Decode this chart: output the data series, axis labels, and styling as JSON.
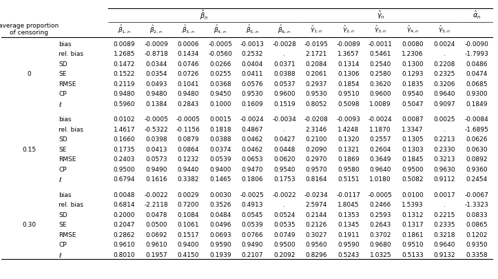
{
  "left_header1": "average proportion",
  "left_header2": "of censoring",
  "col_header_labels": [
    "$\\hat{\\beta}_{1,n}$",
    "$\\hat{\\beta}_{2,n}$",
    "$\\hat{\\beta}_{3,n}$",
    "$\\hat{\\beta}_{4,n}$",
    "$\\hat{\\beta}_{5,n}$",
    "$\\hat{\\beta}_{6,n}$",
    "$\\hat{\\gamma}_{1,n}$",
    "$\\hat{\\gamma}_{2,n}$",
    "$\\hat{\\gamma}_{3,n}$",
    "$\\hat{\\gamma}_{4,n}$",
    "$\\hat{\\gamma}_{5,n}$",
    ""
  ],
  "group_labels": [
    "$\\hat{\\beta}_n$",
    "$\\hat{\\gamma}_n$",
    "$\\hat{\\alpha}_n$"
  ],
  "row_labels_col1": [
    "0",
    "",
    "",
    "",
    "",
    "",
    "",
    "0.15",
    "",
    "",
    "",
    "",
    "",
    "",
    "0.30",
    "",
    "",
    "",
    "",
    "",
    ""
  ],
  "row_labels_col2": [
    "bias",
    "rel. bias",
    "SD",
    "SE",
    "RMSE",
    "CP",
    "$\\ell$",
    "bias",
    "rel. bias",
    "SD",
    "SE",
    "RMSE",
    "CP",
    "$\\ell$",
    "bias",
    "rel. bias",
    "SD",
    "SE",
    "RMSE",
    "CP",
    "$\\ell$"
  ],
  "data": [
    [
      "-0.0195",
      "-0.0089",
      "-0.0011",
      "0.0080",
      "0.0024",
      "-0.0090"
    ],
    [
      "2.1721",
      "1.3657",
      "0.5461",
      "1.2306",
      ".",
      "-1.7993"
    ],
    [
      "0.2084",
      "0.1314",
      "0.2540",
      "0.1300",
      "0.2208",
      "0.0486"
    ],
    [
      "0.2061",
      "0.1306",
      "0.2580",
      "0.1293",
      "0.2325",
      "0.0474"
    ],
    [
      "0.2937",
      "0.1854",
      "0.3620",
      "0.1835",
      "0.3206",
      "0.0685"
    ],
    [
      "0.9530",
      "0.9510",
      "0.9600",
      "0.9540",
      "0.9640",
      "0.9300"
    ],
    [
      "0.8052",
      "0.5098",
      "1.0089",
      "0.5047",
      "0.9097",
      "0.1849"
    ],
    [
      "-0.0208",
      "-0.0093",
      "-0.0024",
      "0.0087",
      "0.0025",
      "-0.0084"
    ],
    [
      "2.3146",
      "1.4248",
      "1.1870",
      "1.3347",
      ".",
      "-1.6895"
    ],
    [
      "0.2100",
      "0.1320",
      "0.2557",
      "0.1305",
      "0.2213",
      "0.0626"
    ],
    [
      "0.2090",
      "0.1321",
      "0.2604",
      "0.1303",
      "0.2330",
      "0.0630"
    ],
    [
      "0.2970",
      "0.1869",
      "0.3649",
      "0.1845",
      "0.3213",
      "0.0892"
    ],
    [
      "0.9570",
      "0.9580",
      "0.9640",
      "0.9500",
      "0.9630",
      "0.9360"
    ],
    [
      "0.8164",
      "0.5151",
      "1.0180",
      "0.5082",
      "0.9112",
      "0.2454"
    ],
    [
      "-0.0234",
      "-0.0117",
      "-0.0005",
      "0.0100",
      "0.0017",
      "-0.0067"
    ],
    [
      "2.5974",
      "1.8045",
      "0.2466",
      "1.5393",
      ".",
      "-1.3323"
    ],
    [
      "0.2144",
      "0.1353",
      "0.2593",
      "0.1312",
      "0.2215",
      "0.0833"
    ],
    [
      "0.2126",
      "0.1345",
      "0.2643",
      "0.1317",
      "0.2335",
      "0.0865"
    ],
    [
      "0.3027",
      "0.1911",
      "0.3702",
      "0.1861",
      "0.3218",
      "0.1202"
    ],
    [
      "0.9560",
      "0.9590",
      "0.9680",
      "0.9510",
      "0.9640",
      "0.9350"
    ],
    [
      "0.8296",
      "0.5243",
      "1.0325",
      "0.5133",
      "0.9132",
      "0.3358"
    ]
  ],
  "data_beta": [
    [
      "0.0089",
      "-0.0009",
      "0.0006",
      "-0.0005",
      "-0.0013",
      "-0.0028"
    ],
    [
      "1.2685",
      "-0.8718",
      "0.1434",
      "-0.0560",
      "0.2532",
      "."
    ],
    [
      "0.1472",
      "0.0344",
      "0.0746",
      "0.0266",
      "0.0404",
      "0.0371"
    ],
    [
      "0.1522",
      "0.0354",
      "0.0726",
      "0.0255",
      "0.0411",
      "0.0388"
    ],
    [
      "0.2119",
      "0.0493",
      "0.1041",
      "0.0368",
      "0.0576",
      "0.0537"
    ],
    [
      "0.9480",
      "0.9480",
      "0.9480",
      "0.9450",
      "0.9530",
      "0.9600"
    ],
    [
      "0.5960",
      "0.1384",
      "0.2843",
      "0.1000",
      "0.1609",
      "0.1519"
    ],
    [
      "0.0102",
      "-0.0005",
      "-0.0005",
      "0.0015",
      "-0.0024",
      "-0.0034"
    ],
    [
      "1.4617",
      "-0.5322",
      "-0.1156",
      "0.1818",
      "0.4867",
      "."
    ],
    [
      "0.1660",
      "0.0398",
      "0.0879",
      "0.0388",
      "0.0462",
      "0.0427"
    ],
    [
      "0.1735",
      "0.0413",
      "0.0864",
      "0.0374",
      "0.0462",
      "0.0448"
    ],
    [
      "0.2403",
      "0.0573",
      "0.1232",
      "0.0539",
      "0.0653",
      "0.0620"
    ],
    [
      "0.9500",
      "0.9490",
      "0.9440",
      "0.9400",
      "0.9470",
      "0.9540"
    ],
    [
      "0.6794",
      "0.1616",
      "0.3382",
      "0.1465",
      "0.1806",
      "0.1753"
    ],
    [
      "0.0048",
      "-0.0022",
      "0.0029",
      "0.0030",
      "-0.0025",
      "-0.0022"
    ],
    [
      "0.6814",
      "-2.2118",
      "0.7200",
      "0.3526",
      "0.4913",
      "."
    ],
    [
      "0.2000",
      "0.0478",
      "0.1084",
      "0.0484",
      "0.0545",
      "0.0524"
    ],
    [
      "0.2047",
      "0.0500",
      "0.1061",
      "0.0496",
      "0.0539",
      "0.0535"
    ],
    [
      "0.2862",
      "0.0692",
      "0.1517",
      "0.0693",
      "0.0766",
      "0.0749"
    ],
    [
      "0.9610",
      "0.9610",
      "0.9400",
      "0.9590",
      "0.9490",
      "0.9500"
    ],
    [
      "0.8010",
      "0.1957",
      "0.4150",
      "0.1939",
      "0.2107",
      "0.2092"
    ]
  ],
  "fontsize": 6.5,
  "figsize": [
    7.23,
    4.05
  ]
}
